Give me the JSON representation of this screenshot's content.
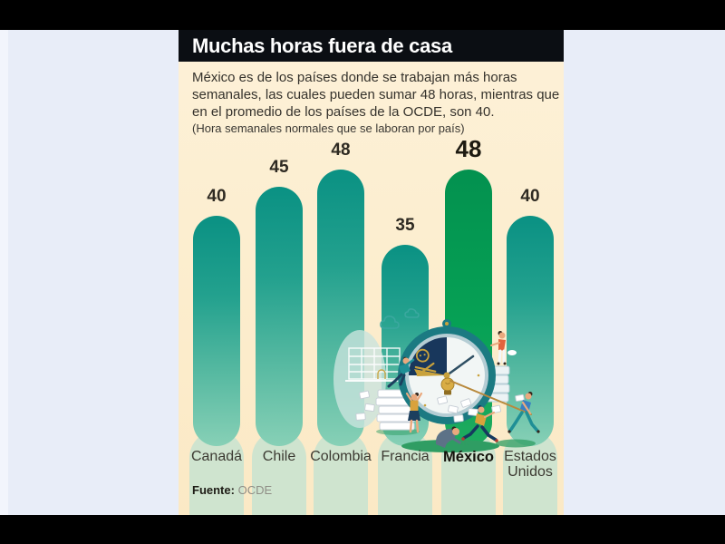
{
  "colors": {
    "letterbox": "#000000",
    "page_background": "#e8edf8",
    "card_background": "#fcedcd",
    "header_band": "#0b0e13",
    "header_text": "#ffffff",
    "bar_teal_top": "#0a9183",
    "bar_teal_bottom": "#87d0b6",
    "bar_highlight_green": "#06a155",
    "bar_reflection_mint": "#cfe4cf",
    "body_text": "#35322c",
    "gold_accent": "#c9a23c",
    "clock_navy": "#18375c",
    "clock_rim_teal": "#1b7a82"
  },
  "intro": {
    "text": "México es de los países donde se trabajan más horas semanales, las cuales pueden sumar 48 horas, mientras que en el promedio de los países de la OCDE, son 40."
  },
  "source": {
    "label": "Fuente:",
    "value": "OCDE"
  },
  "chart_data": {
    "type": "bar",
    "title": "Muchas horas fuera de casa",
    "subtitle": "(Hora semanales normales que se laboran por país)",
    "categories": [
      "Canadá",
      "Chile",
      "Colombia",
      "Francia",
      "México",
      "Estados Unidos"
    ],
    "values": [
      40,
      45,
      48,
      35,
      48,
      40
    ],
    "highlight_index": 4,
    "highlight_category": "México",
    "xlabel": "",
    "ylabel": "",
    "ylim": [
      0,
      48
    ],
    "grid": false,
    "legend": false,
    "value_labels": true
  },
  "illustration": {
    "name": "overwork-clock-scene",
    "elements": [
      "pocket-watch-clock",
      "skull-and-crossbones-emblem",
      "lightbulb",
      "clock-hands-rope",
      "paper-stacks",
      "flying-papers",
      "office-workers",
      "building-blueprint",
      "clouds"
    ]
  }
}
